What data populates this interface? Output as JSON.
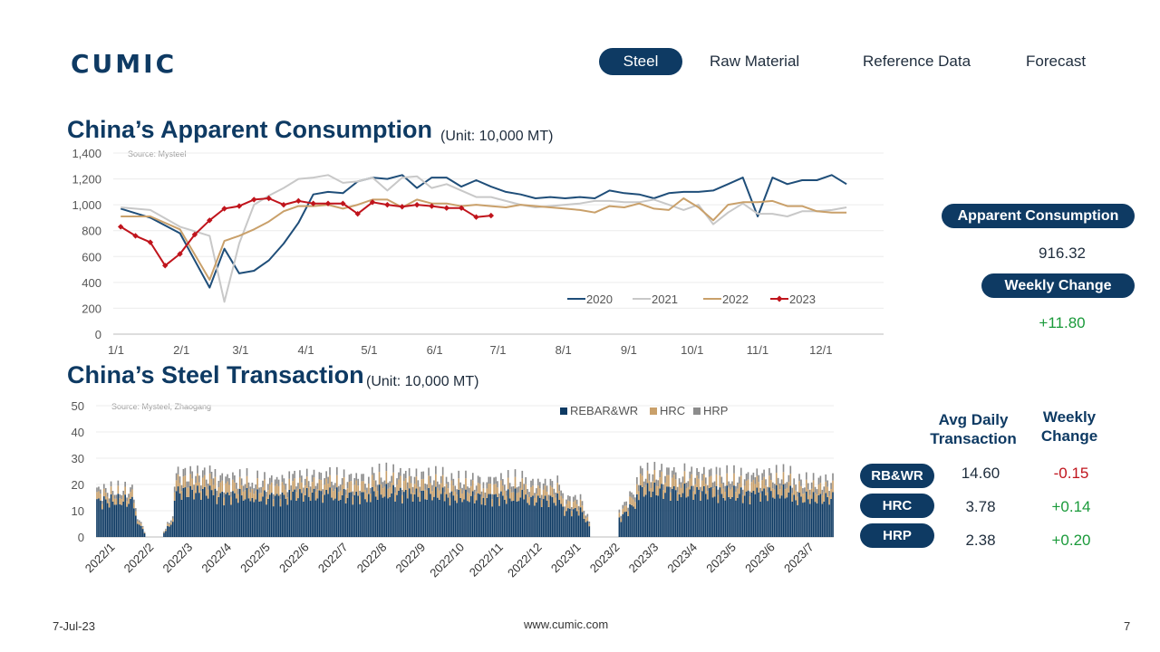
{
  "logo": {
    "text": "CUMIC"
  },
  "nav": {
    "items": [
      "Steel",
      "Raw Material",
      "Reference Data",
      "Forecast"
    ],
    "active": "Steel"
  },
  "consumption": {
    "title": "China’s Apparent Consumption",
    "unit": "(Unit: 10,000 MT)",
    "source": "Source: Mysteel",
    "panel": {
      "label1": "Apparent Consumption",
      "value1": "916.32",
      "label2": "Weekly Change",
      "value2": "+11.80"
    }
  },
  "transaction": {
    "title": "China’s Steel Transaction",
    "unit": "(Unit: 10,000 MT)",
    "source": "Source: Mysteel, Zhaogang",
    "headers": {
      "avg": "Avg Daily\nTransaction",
      "chg": "Weekly\nChange"
    },
    "rows": [
      {
        "label": "RB&WR",
        "avg": "14.60",
        "chg": "-0.15"
      },
      {
        "label": "HRC",
        "avg": "3.78",
        "chg": "+0.14"
      },
      {
        "label": "HRP",
        "avg": "2.38",
        "chg": "+0.20"
      }
    ]
  },
  "colors": {
    "navy": "#0e3a63",
    "c2020": "#1f4e79",
    "c2021": "#c8c8c8",
    "c2022": "#c9a06a",
    "c2023": "#c0141c",
    "rebar": "#0e3a63",
    "hrc": "#c9a06a",
    "hrp": "#8c8c8c",
    "positive": "#1a9a3a",
    "negative": "#c0141c"
  },
  "footer": {
    "date": "7-Jul-23",
    "site": "www.cumic.com",
    "page": "7"
  },
  "chart_data": [
    {
      "type": "line",
      "ylim": [
        0,
        1400
      ],
      "yticks": [
        "0",
        "200",
        "400",
        "600",
        "800",
        "1,000",
        "1,200",
        "1,400"
      ],
      "xticks": [
        "1/1",
        "2/1",
        "3/1",
        "4/1",
        "5/1",
        "6/1",
        "7/1",
        "8/1",
        "9/1",
        "10/1",
        "11/1",
        "12/1"
      ],
      "legend": "bottom-right",
      "series": [
        {
          "name": "2020",
          "week": [
            1,
            3,
            5,
            7,
            8,
            9,
            10,
            11,
            12,
            13,
            14,
            15,
            16,
            17,
            18,
            19,
            20,
            21,
            22,
            23,
            24,
            25,
            26,
            27,
            28,
            29,
            30,
            31,
            32,
            33,
            34,
            35,
            36,
            37,
            38,
            39,
            40,
            41,
            42,
            43,
            44,
            45,
            46,
            47,
            48,
            49,
            50
          ],
          "values": [
            970,
            900,
            780,
            360,
            660,
            470,
            490,
            570,
            700,
            860,
            1080,
            1100,
            1090,
            1180,
            1210,
            1200,
            1230,
            1130,
            1210,
            1210,
            1140,
            1190,
            1140,
            1100,
            1080,
            1050,
            1060,
            1050,
            1060,
            1050,
            1110,
            1090,
            1080,
            1050,
            1090,
            1100,
            1100,
            1110,
            1160,
            1210,
            910,
            1210,
            1160,
            1190,
            1190,
            1230,
            1160
          ]
        },
        {
          "name": "2021",
          "week": [
            1,
            3,
            5,
            7,
            8,
            9,
            10,
            11,
            12,
            13,
            14,
            15,
            16,
            17,
            18,
            19,
            20,
            21,
            22,
            23,
            24,
            25,
            26,
            27,
            28,
            29,
            30,
            31,
            32,
            33,
            34,
            35,
            36,
            37,
            38,
            39,
            40,
            41,
            42,
            43,
            44,
            45,
            46,
            47,
            48,
            49,
            50
          ],
          "values": [
            980,
            960,
            830,
            760,
            250,
            700,
            1000,
            1070,
            1130,
            1200,
            1210,
            1230,
            1170,
            1180,
            1210,
            1110,
            1210,
            1220,
            1130,
            1160,
            1110,
            1060,
            1060,
            1030,
            1000,
            980,
            990,
            1000,
            1010,
            1030,
            1030,
            1020,
            1020,
            1040,
            1000,
            960,
            1000,
            850,
            940,
            1010,
            930,
            930,
            910,
            950,
            950,
            960,
            980
          ]
        },
        {
          "name": "2022",
          "week": [
            1,
            3,
            5,
            7,
            8,
            9,
            10,
            11,
            12,
            13,
            14,
            15,
            16,
            17,
            18,
            19,
            20,
            21,
            22,
            23,
            24,
            25,
            26,
            27,
            28,
            29,
            30,
            31,
            32,
            33,
            34,
            35,
            36,
            37,
            38,
            39,
            40,
            41,
            42,
            43,
            44,
            45,
            46,
            47,
            48,
            49,
            50
          ],
          "values": [
            910,
            910,
            810,
            420,
            720,
            760,
            810,
            870,
            950,
            990,
            990,
            1000,
            970,
            1000,
            1040,
            1040,
            980,
            1040,
            1010,
            1010,
            990,
            1000,
            990,
            980,
            1000,
            990,
            980,
            970,
            960,
            940,
            990,
            980,
            1010,
            970,
            960,
            1050,
            980,
            880,
            1000,
            1020,
            1020,
            1030,
            990,
            990,
            950,
            940,
            940
          ]
        },
        {
          "name": "2023",
          "week": [
            1,
            2,
            3,
            4,
            5,
            6,
            7,
            8,
            9,
            10,
            11,
            12,
            13,
            14,
            15,
            16,
            17,
            18,
            19,
            20,
            21,
            22,
            23,
            24,
            25,
            26
          ],
          "values": [
            830,
            760,
            710,
            530,
            620,
            770,
            880,
            970,
            990,
            1040,
            1050,
            1000,
            1030,
            1010,
            1010,
            1010,
            930,
            1020,
            1000,
            985,
            1000,
            990,
            975,
            975,
            905,
            916.32
          ]
        }
      ]
    },
    {
      "type": "bar",
      "stacked": true,
      "ylim": [
        0,
        50
      ],
      "yticks": [
        "0",
        "10",
        "20",
        "30",
        "40",
        "50"
      ],
      "xticks": [
        "2022/1",
        "2022/2",
        "2022/3",
        "2022/4",
        "2022/5",
        "2022/6",
        "2022/7",
        "2022/8",
        "2022/9",
        "2022/10",
        "2022/11",
        "2022/12",
        "2023/1",
        "2023/2",
        "2023/3",
        "2023/4",
        "2023/5",
        "2023/6",
        "2023/7"
      ],
      "legend": "top-center",
      "series_names": [
        "REBAR&WR",
        "HRC",
        "HRP"
      ],
      "monthly_avg": {
        "REBAR&WR": [
          13.5,
          7.0,
          17.0,
          15.5,
          15.0,
          16.0,
          15.5,
          16.5,
          16.0,
          15.0,
          15.0,
          14.0,
          10.0,
          13.5,
          17.5,
          17.0,
          16.0,
          16.5,
          14.6
        ],
        "HRC": [
          2.5,
          1.5,
          4.0,
          3.8,
          3.5,
          3.8,
          3.8,
          4.0,
          4.0,
          3.6,
          3.6,
          3.4,
          2.6,
          3.2,
          4.0,
          3.9,
          3.8,
          3.9,
          3.78
        ],
        "HRP": [
          1.6,
          1.0,
          2.6,
          2.5,
          2.4,
          2.5,
          2.5,
          2.6,
          2.6,
          2.4,
          2.4,
          2.3,
          1.8,
          2.2,
          2.6,
          2.5,
          2.5,
          2.5,
          2.38
        ]
      }
    }
  ]
}
